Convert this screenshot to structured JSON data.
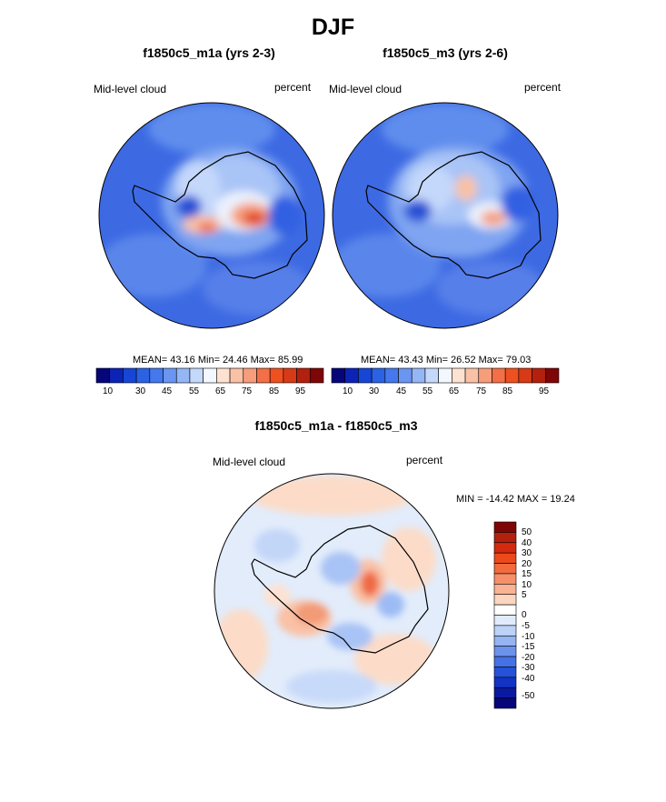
{
  "title": "DJF",
  "panels": [
    {
      "subtitle": "f1850c5_m1a (yrs 2-3)",
      "left_label": "Mid-level cloud",
      "right_label": "percent",
      "stats": "MEAN=  43.16  Min=  24.46  Max=  85.99"
    },
    {
      "subtitle": "f1850c5_m3 (yrs 2-6)",
      "left_label": "Mid-level cloud",
      "right_label": "percent",
      "stats": "MEAN=  43.43  Min=  26.52  Max=  79.03"
    },
    {
      "subtitle": "f1850c5_m1a - f1850c5_m3",
      "left_label": "Mid-level cloud",
      "right_label": "percent",
      "stats": "MIN = -14.42 MAX =  19.24"
    }
  ],
  "horizontal_colorbar": {
    "colors": [
      "#06067a",
      "#0d23b6",
      "#1746d6",
      "#2b62e3",
      "#4478ec",
      "#6a95f0",
      "#94b6f5",
      "#c4d8fb",
      "#f3f7ff",
      "#fde2d2",
      "#f9c1a6",
      "#f69d7b",
      "#f26f47",
      "#ee5020",
      "#d73a16",
      "#b3200e",
      "#7e0606"
    ],
    "tick_labels": [
      "10",
      "30",
      "45",
      "55",
      "65",
      "75",
      "85",
      "95"
    ]
  },
  "vertical_colorbar": {
    "colors_top_to_bottom": [
      "#7e0606",
      "#b3200e",
      "#d32a0f",
      "#ec4a1a",
      "#f26b3e",
      "#f6906a",
      "#f9b394",
      "#fcd5c0",
      "#ffffff",
      "#e0ebfb",
      "#bcd2f7",
      "#94b4f2",
      "#6c93ec",
      "#4472e6",
      "#2552d9",
      "#1233c4",
      "#0a1aa0",
      "#06067a"
    ],
    "tick_labels": [
      "50",
      "40",
      "30",
      "20",
      "15",
      "10",
      "5",
      "0",
      "-5",
      "-10",
      "-15",
      "-20",
      "-30",
      "-40",
      "-50"
    ]
  }
}
